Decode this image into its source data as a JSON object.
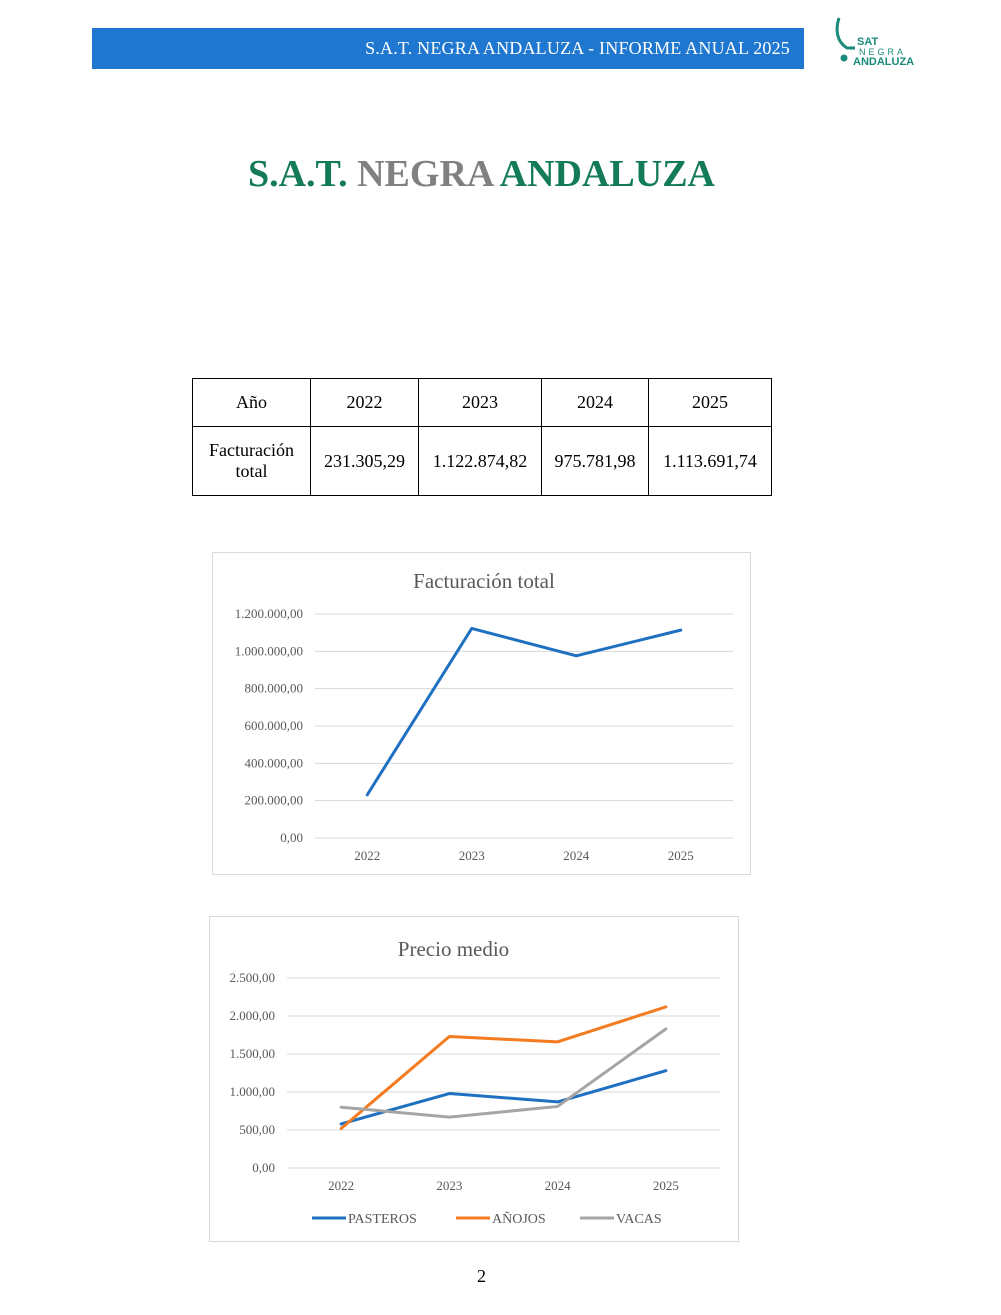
{
  "header": {
    "title": "S.A.T. NEGRA ANDALUZA - INFORME ANUAL 2025",
    "logo": {
      "line1": "SAT",
      "line2": "NEGRA",
      "line3": "ANDALUZA",
      "color": "#1a8a7a"
    }
  },
  "document": {
    "title_part1": "S.A.T.",
    "title_part2": "NEGRA",
    "title_part3": "ANDALUZA",
    "page_number": "2"
  },
  "table": {
    "headers": [
      "Año",
      "2022",
      "2023",
      "2024",
      "2025"
    ],
    "row": {
      "label": "Facturación total",
      "values": [
        "231.305,29",
        "1.122.874,82",
        "975.781,98",
        "1.113.691,74"
      ]
    }
  },
  "chart_data": [
    {
      "type": "line",
      "title": "Facturación total",
      "x": [
        "2022",
        "2023",
        "2024",
        "2025"
      ],
      "yticks": [
        "0,00",
        "200.000,00",
        "400.000,00",
        "600.000,00",
        "800.000,00",
        "1.000.000,00",
        "1.200.000,00"
      ],
      "ylim": [
        0,
        1200000
      ],
      "grid": true,
      "series": [
        {
          "values": [
            231305.29,
            1122874.82,
            975781.98,
            1113691.74
          ],
          "color": "#1f70c1"
        }
      ]
    },
    {
      "type": "line",
      "title": "Precio medio",
      "x": [
        "2022",
        "2023",
        "2024",
        "2025"
      ],
      "yticks": [
        "0,00",
        "500,00",
        "1.000,00",
        "1.500,00",
        "2.000,00",
        "2.500,00"
      ],
      "ylim": [
        0,
        2500
      ],
      "grid": true,
      "legend": "bottom",
      "series": [
        {
          "name": "PASTEROS",
          "values": [
            580,
            980,
            870,
            1280
          ],
          "color": "#1f70c1"
        },
        {
          "name": "AÑOJOS",
          "values": [
            520,
            1730,
            1660,
            2120
          ],
          "color": "#f47b20"
        },
        {
          "name": "VACAS",
          "values": [
            800,
            670,
            810,
            1830
          ],
          "color": "#a5a5a5"
        }
      ]
    }
  ]
}
